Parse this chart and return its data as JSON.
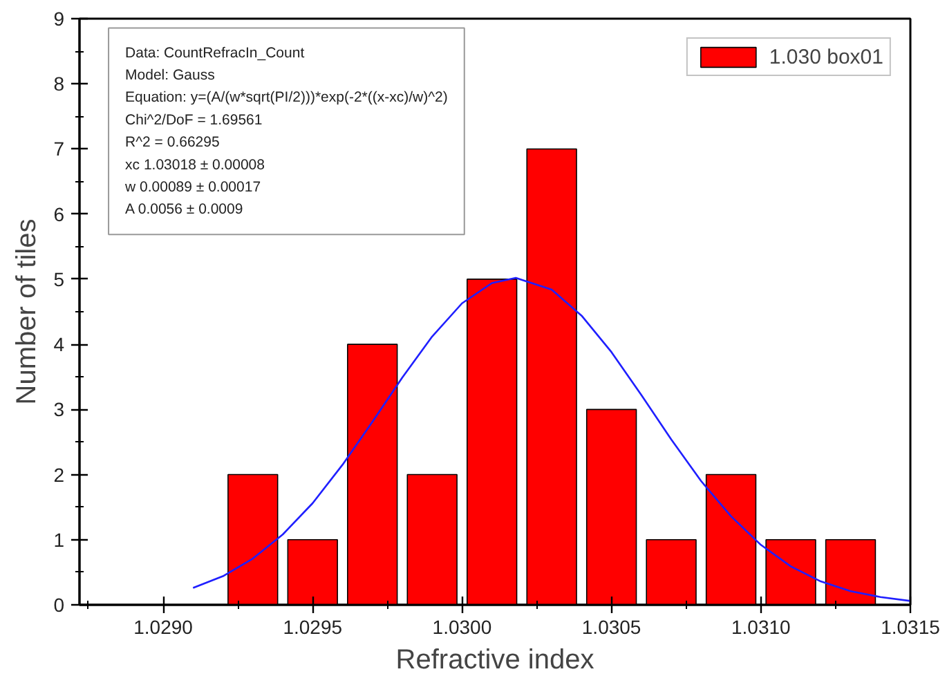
{
  "chart_data": {
    "type": "histogram",
    "xlabel": "Refractive index",
    "ylabel": "Number of tiles",
    "bins": [
      1.0292,
      1.0294,
      1.0296,
      1.0298,
      1.03,
      1.0302,
      1.0304,
      1.0306,
      1.0308,
      1.031,
      1.0312,
      1.0314
    ],
    "series": [
      {
        "name": "1.030 box01",
        "color": "#ff0000",
        "values": [
          2,
          1,
          4,
          2,
          5,
          7,
          3,
          1,
          2,
          1,
          1
        ]
      },
      {
        "type": "line",
        "color": "#1f1fff",
        "x": [
          1.0291,
          1.0292,
          1.0293,
          1.0294,
          1.0295,
          1.0296,
          1.0297,
          1.0298,
          1.0299,
          1.03,
          1.0301,
          1.03018,
          1.0303,
          1.0304,
          1.0305,
          1.0306,
          1.0307,
          1.0308,
          1.0309,
          1.031,
          1.0311,
          1.0312,
          1.0313,
          1.0314,
          1.0315
        ],
        "values": [
          0.26,
          0.44,
          0.71,
          1.08,
          1.56,
          2.15,
          2.81,
          3.49,
          4.12,
          4.63,
          4.94,
          5.02,
          4.84,
          4.44,
          3.88,
          3.22,
          2.54,
          1.9,
          1.36,
          0.92,
          0.59,
          0.36,
          0.21,
          0.12,
          0.06
        ]
      }
    ],
    "xlim": [
      1.02872,
      1.0315
    ],
    "xticks": [
      {
        "value": 1.02875,
        "label": null
      },
      {
        "value": 1.029,
        "label": "1.0290"
      },
      {
        "value": 1.02925,
        "label": null
      },
      {
        "value": 1.0295,
        "label": "1.0295"
      },
      {
        "value": 1.02975,
        "label": null
      },
      {
        "value": 1.03,
        "label": "1.0300"
      },
      {
        "value": 1.03025,
        "label": null
      },
      {
        "value": 1.0305,
        "label": "1.0305"
      },
      {
        "value": 1.03075,
        "label": null
      },
      {
        "value": 1.031,
        "label": "1.0310"
      },
      {
        "value": 1.03125,
        "label": null
      },
      {
        "value": 1.0315,
        "label": "1.0315"
      }
    ],
    "ylim": [
      0,
      9
    ],
    "yticks": [
      0,
      {
        "value": 0.5,
        "label": null
      },
      1,
      {
        "value": 1.5,
        "label": null
      },
      2,
      {
        "value": 2.5,
        "label": null
      },
      3,
      {
        "value": 3.5,
        "label": null
      },
      4,
      {
        "value": 4.5,
        "label": null
      },
      5,
      {
        "value": 5.5,
        "label": null
      },
      6,
      {
        "value": 6.5,
        "label": null
      },
      7,
      {
        "value": 7.5,
        "label": null
      },
      8,
      {
        "value": 8.5,
        "label": null
      },
      9
    ],
    "annotations": [
      "Data: CountRefracIn_Count",
      "Model: Gauss",
      "Equation: y=(A/(w*sqrt(PI/2)))*exp(-2*((x-xc)/w)^2)",
      "Chi^2/DoF      = 1.69561",
      "R^2    =  0.66295",
      "xc       1.03018  ±  0.00008",
      "w        0.00089  ±  0.00017",
      "A        0.0056  ±  0.0009"
    ],
    "legend": "top right",
    "grid": false
  }
}
